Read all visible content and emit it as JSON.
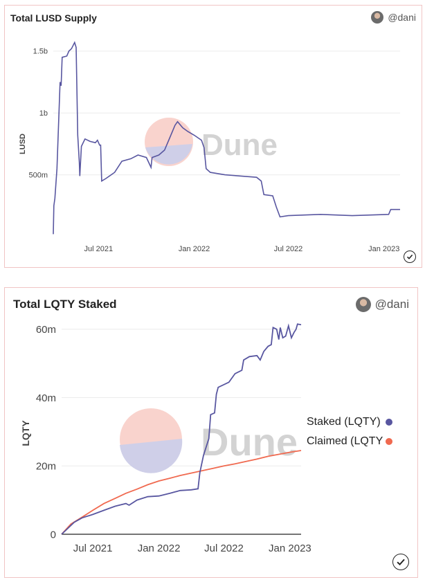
{
  "author": "@dani",
  "watermark": "Dune",
  "colors": {
    "staked": "#5856a0",
    "claimed": "#f0694f",
    "border": "#f0c4c4"
  },
  "chart_data": [
    {
      "type": "line",
      "title": "Total LUSD Supply",
      "ylabel": "LUSD",
      "xlabel": "",
      "x_ticks": [
        "Jul 2021",
        "Jan 2022",
        "Jul 2022",
        "Jan 2023"
      ],
      "y_ticks": [
        "500m",
        "1b",
        "1.5b"
      ],
      "ylim": [
        0,
        1600000000
      ],
      "xlim": [
        "2021-04-05",
        "2023-02-01"
      ],
      "series": [
        {
          "values": [
            [
              "2021-04-05",
              20000000.0
            ],
            [
              "2021-04-06",
              250000000.0
            ],
            [
              "2021-04-08",
              310000000.0
            ],
            [
              "2021-04-12",
              550000000.0
            ],
            [
              "2021-04-18",
              1250000000.0
            ],
            [
              "2021-04-20",
              1220000000.0
            ],
            [
              "2021-04-22",
              1450000000.0
            ],
            [
              "2021-05-01",
              1460000000.0
            ],
            [
              "2021-05-05",
              1500000000.0
            ],
            [
              "2021-05-10",
              1520000000.0
            ],
            [
              "2021-05-16",
              1570000000.0
            ],
            [
              "2021-05-19",
              1530000000.0
            ],
            [
              "2021-05-22",
              820000000.0
            ],
            [
              "2021-05-25",
              600000000.0
            ],
            [
              "2021-05-26",
              490000000.0
            ],
            [
              "2021-05-29",
              730000000.0
            ],
            [
              "2021-06-05",
              790000000.0
            ],
            [
              "2021-06-15",
              770000000.0
            ],
            [
              "2021-06-25",
              760000000.0
            ],
            [
              "2021-06-29",
              780000000.0
            ],
            [
              "2021-07-03",
              740000000.0
            ],
            [
              "2021-07-05",
              740000000.0
            ],
            [
              "2021-07-07",
              450000000.0
            ],
            [
              "2021-07-15",
              470000000.0
            ],
            [
              "2021-08-01",
              520000000.0
            ],
            [
              "2021-08-15",
              610000000.0
            ],
            [
              "2021-09-01",
              630000000.0
            ],
            [
              "2021-09-15",
              660000000.0
            ],
            [
              "2021-10-01",
              640000000.0
            ],
            [
              "2021-10-10",
              560000000.0
            ],
            [
              "2021-10-12",
              640000000.0
            ],
            [
              "2021-10-25",
              660000000.0
            ],
            [
              "2021-11-05",
              700000000.0
            ],
            [
              "2021-11-15",
              800000000.0
            ],
            [
              "2021-11-25",
              900000000.0
            ],
            [
              "2021-11-30",
              930000000.0
            ],
            [
              "2021-12-10",
              880000000.0
            ],
            [
              "2021-12-20",
              850000000.0
            ],
            [
              "2022-01-01",
              820000000.0
            ],
            [
              "2022-01-15",
              780000000.0
            ],
            [
              "2022-01-20",
              720000000.0
            ],
            [
              "2022-01-24",
              550000000.0
            ],
            [
              "2022-02-01",
              520000000.0
            ],
            [
              "2022-03-01",
              500000000.0
            ],
            [
              "2022-04-01",
              490000000.0
            ],
            [
              "2022-05-01",
              480000000.0
            ],
            [
              "2022-05-10",
              450000000.0
            ],
            [
              "2022-05-15",
              340000000.0
            ],
            [
              "2022-06-01",
              330000000.0
            ],
            [
              "2022-06-08",
              240000000.0
            ],
            [
              "2022-06-15",
              160000000.0
            ],
            [
              "2022-07-01",
              170000000.0
            ],
            [
              "2022-09-01",
              180000000.0
            ],
            [
              "2022-11-01",
              170000000.0
            ],
            [
              "2023-01-10",
              180000000.0
            ],
            [
              "2023-01-14",
              220000000.0
            ],
            [
              "2023-02-01",
              220000000.0
            ]
          ]
        }
      ]
    },
    {
      "type": "line",
      "title": "Total LQTY Staked",
      "ylabel": "LQTY",
      "xlabel": "",
      "x_ticks": [
        "Jul 2021",
        "Jan 2022",
        "Jul 2022",
        "Jan 2023"
      ],
      "y_ticks": [
        "0",
        "20m",
        "40m",
        "60m"
      ],
      "ylim": [
        0,
        64000000
      ],
      "xlim": [
        "2021-04-05",
        "2023-02-01"
      ],
      "series": [
        {
          "name": "Staked (LQTY)",
          "values": [
            [
              "2021-04-05",
              0
            ],
            [
              "2021-04-20",
              1500000.0
            ],
            [
              "2021-05-10",
              3500000.0
            ],
            [
              "2021-06-01",
              4800000.0
            ],
            [
              "2021-07-01",
              5800000.0
            ],
            [
              "2021-08-01",
              7000000.0
            ],
            [
              "2021-09-01",
              8200000.0
            ],
            [
              "2021-10-01",
              9000000.0
            ],
            [
              "2021-10-10",
              8500000.0
            ],
            [
              "2021-11-01",
              10000000.0
            ],
            [
              "2021-12-01",
              11000000.0
            ],
            [
              "2022-01-01",
              11200000.0
            ],
            [
              "2022-02-01",
              12000000.0
            ],
            [
              "2022-03-01",
              12800000.0
            ],
            [
              "2022-04-01",
              13000000.0
            ],
            [
              "2022-04-20",
              13300000.0
            ],
            [
              "2022-04-25",
              18000000.0
            ],
            [
              "2022-05-05",
              23000000.0
            ],
            [
              "2022-05-20",
              28000000.0
            ],
            [
              "2022-05-25",
              35000000.0
            ],
            [
              "2022-06-05",
              35500000.0
            ],
            [
              "2022-06-10",
              41000000.0
            ],
            [
              "2022-06-15",
              43000000.0
            ],
            [
              "2022-07-15",
              44500000.0
            ],
            [
              "2022-08-01",
              47000000.0
            ],
            [
              "2022-08-20",
              48000000.0
            ],
            [
              "2022-08-25",
              51000000.0
            ],
            [
              "2022-09-10",
              52000000.0
            ],
            [
              "2022-10-01",
              52300000.0
            ],
            [
              "2022-10-10",
              51000000.0
            ],
            [
              "2022-10-20",
              53500000.0
            ],
            [
              "2022-11-01",
              55000000.0
            ],
            [
              "2022-11-10",
              55500000.0
            ],
            [
              "2022-11-15",
              60500000.0
            ],
            [
              "2022-11-25",
              60000000.0
            ],
            [
              "2022-12-01",
              57000000.0
            ],
            [
              "2022-12-05",
              60500000.0
            ],
            [
              "2022-12-12",
              57500000.0
            ],
            [
              "2022-12-20",
              58000000.0
            ],
            [
              "2022-12-28",
              61000000.0
            ],
            [
              "2023-01-05",
              57500000.0
            ],
            [
              "2023-01-12",
              59000000.0
            ],
            [
              "2023-01-18",
              60000000.0
            ],
            [
              "2023-01-22",
              61500000.0
            ],
            [
              "2023-02-01",
              61300000.0
            ]
          ]
        },
        {
          "name": "Claimed (LQTY)",
          "values": [
            [
              "2021-04-05",
              0
            ],
            [
              "2021-05-01",
              3000000.0
            ],
            [
              "2021-06-01",
              5000000.0
            ],
            [
              "2021-07-01",
              7000000.0
            ],
            [
              "2021-08-01",
              9000000.0
            ],
            [
              "2021-09-01",
              10500000.0
            ],
            [
              "2021-10-01",
              12000000.0
            ],
            [
              "2021-11-01",
              13200000.0
            ],
            [
              "2021-12-01",
              14500000.0
            ],
            [
              "2022-01-01",
              15600000.0
            ],
            [
              "2022-02-01",
              16400000.0
            ],
            [
              "2022-03-01",
              17200000.0
            ],
            [
              "2022-04-01",
              17900000.0
            ],
            [
              "2022-05-01",
              18600000.0
            ],
            [
              "2022-06-01",
              19300000.0
            ],
            [
              "2022-07-01",
              20000000.0
            ],
            [
              "2022-08-01",
              20600000.0
            ],
            [
              "2022-09-01",
              21300000.0
            ],
            [
              "2022-10-01",
              22000000.0
            ],
            [
              "2022-11-01",
              22800000.0
            ],
            [
              "2022-12-01",
              23400000.0
            ],
            [
              "2023-01-01",
              24000000.0
            ],
            [
              "2023-02-01",
              24500000.0
            ]
          ]
        }
      ],
      "legend": "right"
    }
  ]
}
